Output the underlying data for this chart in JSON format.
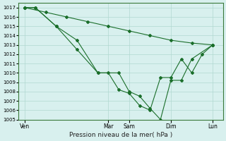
{
  "background_color": "#d8f0ee",
  "grid_color": "#b0d8d0",
  "line_color": "#1a6e2a",
  "marker_color": "#1a6e2a",
  "xlabel": "Pression niveau de la mer( hPa )",
  "ylim": [
    1005,
    1017.5
  ],
  "yticks": [
    1005,
    1006,
    1007,
    1008,
    1009,
    1010,
    1011,
    1012,
    1013,
    1014,
    1015,
    1016,
    1017
  ],
  "xtick_labels": [
    "Ven",
    "Mar",
    "Sam",
    "Dim",
    "Lun"
  ],
  "xtick_positions": [
    0,
    4,
    5,
    7,
    9
  ],
  "series1": {
    "x": [
      0,
      0.5,
      1.5,
      2.5,
      3.5,
      4.5,
      5.0,
      5.5,
      6.0,
      6.5,
      7.0,
      7.5,
      8.0,
      9.0
    ],
    "y": [
      1017,
      1017,
      1015,
      1013.5,
      1010,
      1010,
      1008,
      1007.5,
      1006.2,
      1005,
      1009.2,
      1009.2,
      1011.5,
      1013
    ]
  },
  "series2": {
    "x": [
      0,
      0.5,
      1.5,
      2.5,
      3.5,
      4.0,
      4.5,
      5.0,
      5.5,
      6.0,
      6.5,
      7.0,
      7.5,
      8.0,
      8.5,
      9.0
    ],
    "y": [
      1017,
      1017,
      1015,
      1012.5,
      1010,
      1010,
      1008.2,
      1007.8,
      1006.5,
      1006.0,
      1009.5,
      1009.5,
      1011.5,
      1010,
      1012,
      1013
    ]
  },
  "series3": {
    "x": [
      0,
      1,
      2,
      3,
      4,
      5,
      6,
      7,
      8,
      9
    ],
    "y": [
      1017,
      1016.5,
      1016.0,
      1015.5,
      1015.0,
      1014.5,
      1014.0,
      1013.5,
      1013.2,
      1013.0
    ]
  }
}
